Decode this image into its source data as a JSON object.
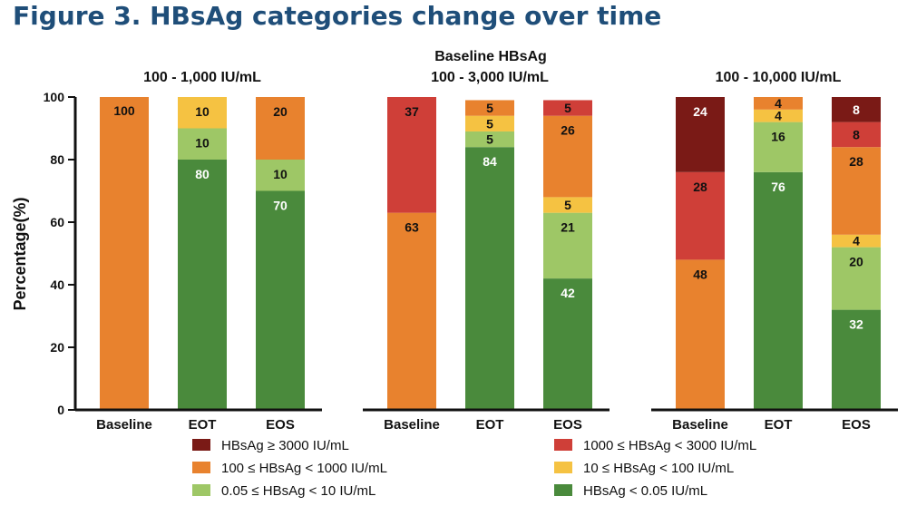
{
  "title": "Figure 3. HBsAg categories change over time",
  "super_header": "Baseline HBsAg",
  "chart_data": {
    "type": "bar",
    "stacked": true,
    "ylabel": "Percentage(%)",
    "ylim": [
      0,
      100
    ],
    "yticks": [
      0,
      20,
      40,
      60,
      80,
      100
    ],
    "legend_position": "bottom",
    "categories_per_group": [
      "Baseline",
      "EOT",
      "EOS"
    ],
    "series": [
      {
        "key": "lt005",
        "name": "HBsAg < 0.05 IU/mL",
        "color": "#4a8a3c"
      },
      {
        "key": "005to10",
        "name": "0.05 ≤ HBsAg < 10 IU/mL",
        "color": "#9ec766"
      },
      {
        "key": "10to100",
        "name": "10 ≤ HBsAg < 100 IU/mL",
        "color": "#f5c242"
      },
      {
        "key": "100to1000",
        "name": "100 ≤ HBsAg < 1000 IU/mL",
        "color": "#e8822e"
      },
      {
        "key": "1000to3000",
        "name": "1000 ≤ HBsAg < 3000 IU/mL",
        "color": "#cf3f38"
      },
      {
        "key": "ge3000",
        "name": "HBsAg ≥ 3000 IU/mL",
        "color": "#7a1a16"
      }
    ],
    "legend_order": [
      "ge3000",
      "1000to3000",
      "100to1000",
      "10to100",
      "005to10",
      "lt005"
    ],
    "groups": [
      {
        "label": "100 - 1,000 IU/mL",
        "bars": [
          {
            "category": "Baseline",
            "segments": [
              {
                "series": "100to1000",
                "value": 100
              }
            ]
          },
          {
            "category": "EOT",
            "segments": [
              {
                "series": "lt005",
                "value": 80
              },
              {
                "series": "005to10",
                "value": 10
              },
              {
                "series": "10to100",
                "value": 10
              }
            ]
          },
          {
            "category": "EOS",
            "segments": [
              {
                "series": "lt005",
                "value": 70
              },
              {
                "series": "005to10",
                "value": 10
              },
              {
                "series": "100to1000",
                "value": 20
              }
            ]
          }
        ]
      },
      {
        "label": "100 - 3,000 IU/mL",
        "bars": [
          {
            "category": "Baseline",
            "segments": [
              {
                "series": "100to1000",
                "value": 63
              },
              {
                "series": "1000to3000",
                "value": 37
              }
            ]
          },
          {
            "category": "EOT",
            "segments": [
              {
                "series": "lt005",
                "value": 84
              },
              {
                "series": "005to10",
                "value": 5
              },
              {
                "series": "10to100",
                "value": 5
              },
              {
                "series": "100to1000",
                "value": 5
              }
            ]
          },
          {
            "category": "EOS",
            "segments": [
              {
                "series": "lt005",
                "value": 42
              },
              {
                "series": "005to10",
                "value": 21
              },
              {
                "series": "10to100",
                "value": 5
              },
              {
                "series": "100to1000",
                "value": 26
              },
              {
                "series": "1000to3000",
                "value": 5
              }
            ]
          }
        ]
      },
      {
        "label": "100 - 10,000 IU/mL",
        "bars": [
          {
            "category": "Baseline",
            "segments": [
              {
                "series": "100to1000",
                "value": 48
              },
              {
                "series": "1000to3000",
                "value": 28
              },
              {
                "series": "ge3000",
                "value": 24
              }
            ]
          },
          {
            "category": "EOT",
            "segments": [
              {
                "series": "lt005",
                "value": 76
              },
              {
                "series": "005to10",
                "value": 16
              },
              {
                "series": "10to100",
                "value": 4
              },
              {
                "series": "100to1000",
                "value": 4
              }
            ]
          },
          {
            "category": "EOS",
            "segments": [
              {
                "series": "lt005",
                "value": 32
              },
              {
                "series": "005to10",
                "value": 20
              },
              {
                "series": "10to100",
                "value": 4
              },
              {
                "series": "100to1000",
                "value": 28
              },
              {
                "series": "1000to3000",
                "value": 8
              },
              {
                "series": "ge3000",
                "value": 8
              }
            ]
          }
        ]
      }
    ]
  }
}
